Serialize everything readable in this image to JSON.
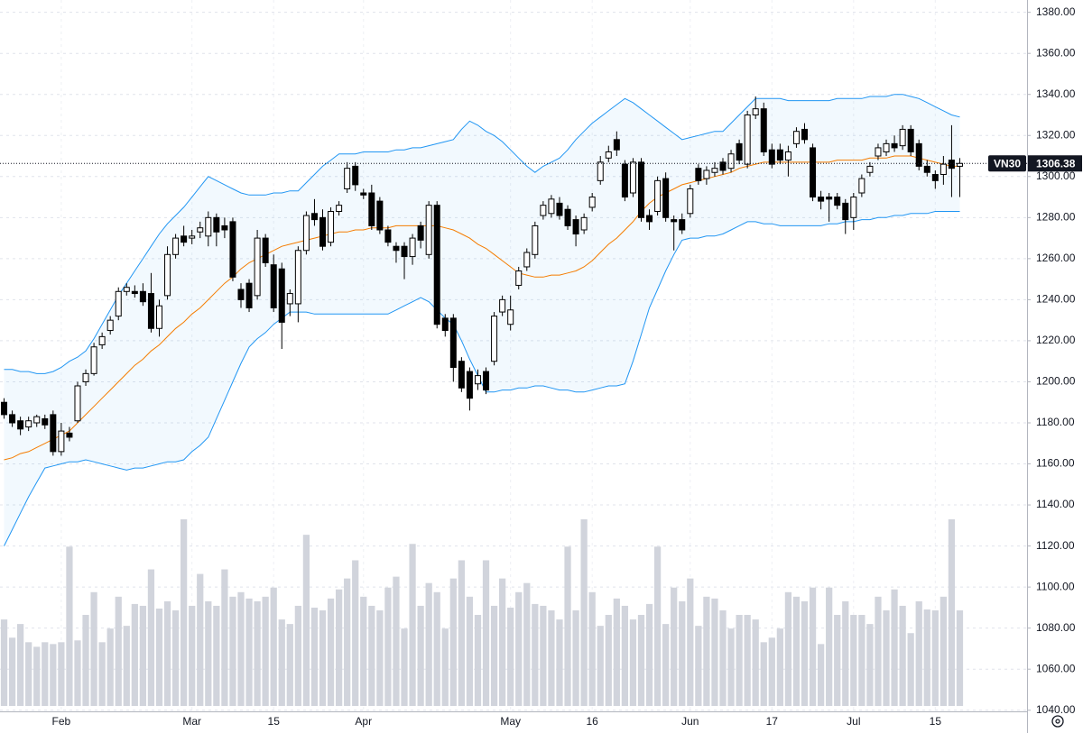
{
  "chart_data": {
    "type": "candlestick",
    "symbol": "VN30",
    "categories": [
      null,
      null,
      null,
      null,
      null,
      null,
      null,
      "Feb",
      null,
      null,
      null,
      null,
      null,
      null,
      null,
      null,
      null,
      null,
      null,
      null,
      null,
      null,
      null,
      "Mar",
      null,
      null,
      null,
      null,
      null,
      null,
      null,
      null,
      null,
      "15",
      null,
      null,
      null,
      null,
      null,
      null,
      null,
      null,
      null,
      null,
      "Apr",
      null,
      null,
      null,
      null,
      null,
      null,
      null,
      null,
      null,
      null,
      null,
      null,
      null,
      null,
      null,
      null,
      null,
      "May",
      null,
      null,
      null,
      null,
      null,
      null,
      null,
      null,
      null,
      "16",
      null,
      null,
      null,
      null,
      null,
      null,
      null,
      null,
      null,
      null,
      null,
      "Jun",
      null,
      null,
      null,
      null,
      null,
      null,
      null,
      null,
      null,
      "17",
      null,
      null,
      null,
      null,
      null,
      null,
      null,
      null,
      null,
      "Jul",
      null,
      null,
      null,
      null,
      null,
      null,
      null,
      null,
      null,
      "15",
      null,
      null,
      null
    ],
    "open": [
      1190,
      1184,
      1181,
      1178,
      1180,
      1182,
      1184,
      1166,
      1175,
      1181,
      1200,
      1204,
      1218,
      1225,
      1232,
      1244,
      1244,
      1244,
      1243,
      1226,
      1242,
      1262,
      1271,
      1270,
      1273,
      1271,
      1280,
      1276,
      1278,
      1245,
      1248,
      1242,
      1270,
      1257,
      1255,
      1238,
      1238,
      1264,
      1282,
      1280,
      1268,
      1283,
      1294,
      1305,
      1292,
      1292,
      1288,
      1274,
      1266,
      1266,
      1261,
      1276,
      1262,
      1286,
      1231,
      1231,
      1210,
      1205,
      1199,
      1205,
      1210,
      1234,
      1228,
      1247,
      1256,
      1262,
      1281,
      1282,
      1287,
      1284,
      1279,
      1274,
      1285,
      1298,
      1309,
      1318,
      1306,
      1292,
      1307,
      1281,
      1283,
      1299,
      1279,
      1279,
      1282,
      1304,
      1299,
      1302,
      1307,
      1304,
      1316,
      1306,
      1330,
      1333,
      1313,
      1313,
      1308,
      1316,
      1323,
      1314,
      1290,
      1290,
      1290,
      1287,
      1280,
      1292,
      1302,
      1310,
      1312,
      1316,
      1315,
      1323,
      1316,
      1305,
      1301,
      1301,
      1308,
      1305
    ],
    "high": [
      1192,
      1186,
      1183,
      1183,
      1184,
      1184,
      1186,
      1180,
      1178,
      1200,
      1206,
      1219,
      1224,
      1232,
      1246,
      1248,
      1247,
      1248,
      1253,
      1240,
      1266,
      1272,
      1276,
      1274,
      1278,
      1283,
      1282,
      1280,
      1280,
      1248,
      1250,
      1274,
      1272,
      1262,
      1258,
      1245,
      1266,
      1283,
      1289,
      1284,
      1285,
      1288,
      1307,
      1307,
      1294,
      1296,
      1290,
      1276,
      1268,
      1268,
      1272,
      1278,
      1288,
      1288,
      1233,
      1233,
      1212,
      1207,
      1206,
      1207,
      1234,
      1242,
      1242,
      1256,
      1265,
      1278,
      1288,
      1291,
      1290,
      1286,
      1281,
      1282,
      1292,
      1310,
      1315,
      1322,
      1308,
      1309,
      1309,
      1284,
      1300,
      1302,
      1281,
      1282,
      1296,
      1306,
      1305,
      1307,
      1309,
      1313,
      1318,
      1332,
      1339,
      1336,
      1316,
      1316,
      1315,
      1324,
      1326,
      1316,
      1293,
      1292,
      1292,
      1289,
      1292,
      1301,
      1307,
      1316,
      1318,
      1320,
      1325,
      1325,
      1318,
      1308,
      1303,
      1310,
      1325,
      1309
    ],
    "low": [
      1182,
      1178,
      1174,
      1176,
      1178,
      1177,
      1164,
      1164,
      1171,
      1180,
      1198,
      1203,
      1216,
      1223,
      1230,
      1242,
      1241,
      1237,
      1224,
      1222,
      1240,
      1260,
      1266,
      1267,
      1270,
      1266,
      1266,
      1270,
      1249,
      1236,
      1234,
      1240,
      1256,
      1234,
      1216,
      1232,
      1229,
      1262,
      1276,
      1264,
      1266,
      1281,
      1292,
      1293,
      1289,
      1274,
      1272,
      1266,
      1258,
      1250,
      1257,
      1265,
      1260,
      1226,
      1222,
      1200,
      1195,
      1186,
      1196,
      1194,
      1208,
      1232,
      1225,
      1245,
      1254,
      1260,
      1279,
      1280,
      1279,
      1274,
      1266,
      1272,
      1283,
      1296,
      1307,
      1310,
      1288,
      1290,
      1278,
      1274,
      1281,
      1278,
      1264,
      1272,
      1280,
      1296,
      1296,
      1300,
      1301,
      1302,
      1306,
      1304,
      1328,
      1310,
      1304,
      1306,
      1300,
      1314,
      1316,
      1288,
      1284,
      1278,
      1284,
      1272,
      1274,
      1290,
      1300,
      1308,
      1310,
      1312,
      1313,
      1310,
      1303,
      1300,
      1294,
      1296,
      1290,
      1290
    ],
    "close": [
      1184,
      1180,
      1177,
      1181,
      1183,
      1179,
      1166,
      1176,
      1173,
      1198,
      1204,
      1217,
      1222,
      1230,
      1244,
      1246,
      1243,
      1239,
      1226,
      1237,
      1262,
      1270,
      1268,
      1271,
      1275,
      1280,
      1273,
      1274,
      1251,
      1240,
      1236,
      1270,
      1258,
      1236,
      1229,
      1243,
      1264,
      1281,
      1279,
      1266,
      1283,
      1286,
      1304,
      1296,
      1291,
      1276,
      1274,
      1268,
      1264,
      1261,
      1270,
      1269,
      1286,
      1228,
      1225,
      1207,
      1197,
      1192,
      1203,
      1196,
      1232,
      1240,
      1235,
      1254,
      1263,
      1276,
      1286,
      1289,
      1281,
      1276,
      1272,
      1280,
      1290,
      1307,
      1312,
      1313,
      1290,
      1307,
      1280,
      1278,
      1298,
      1280,
      1278,
      1274,
      1294,
      1298,
      1303,
      1304,
      1303,
      1311,
      1308,
      1330,
      1333,
      1312,
      1306,
      1308,
      1312,
      1322,
      1318,
      1290,
      1288,
      1289,
      1286,
      1279,
      1290,
      1299,
      1305,
      1314,
      1316,
      1314,
      1323,
      1312,
      1305,
      1302,
      1298,
      1306,
      1304,
      1306.38
    ],
    "volume": [
      95,
      75,
      90,
      70,
      65,
      70,
      68,
      70,
      175,
      72,
      100,
      125,
      70,
      85,
      120,
      88,
      112,
      110,
      150,
      107,
      115,
      105,
      205,
      110,
      145,
      115,
      110,
      150,
      120,
      125,
      118,
      115,
      120,
      130,
      95,
      90,
      110,
      188,
      108,
      105,
      118,
      128,
      140,
      160,
      120,
      110,
      105,
      130,
      142,
      85,
      178,
      110,
      135,
      125,
      85,
      140,
      160,
      120,
      100,
      160,
      110,
      140,
      108,
      125,
      135,
      112,
      110,
      105,
      95,
      175,
      105,
      205,
      125,
      88,
      100,
      118,
      110,
      95,
      100,
      112,
      175,
      90,
      130,
      115,
      140,
      88,
      120,
      118,
      105,
      85,
      100,
      100,
      95,
      70,
      75,
      85,
      125,
      120,
      115,
      130,
      68,
      130,
      100,
      115,
      100,
      100,
      90,
      120,
      105,
      128,
      110,
      80,
      115,
      106,
      105,
      120,
      205,
      105
    ],
    "bollinger": {
      "upper": [
        1206,
        1206,
        1205,
        1205,
        1204,
        1204,
        1205,
        1207,
        1210,
        1212,
        1215,
        1221,
        1228,
        1235,
        1242,
        1248,
        1254,
        1260,
        1266,
        1272,
        1277,
        1281,
        1285,
        1290,
        1295,
        1300,
        1298,
        1296,
        1294,
        1292,
        1291,
        1291,
        1291,
        1292,
        1292,
        1293,
        1293,
        1297,
        1301,
        1305,
        1308,
        1311,
        1311,
        1311,
        1312,
        1312,
        1312,
        1312,
        1313,
        1313,
        1314,
        1314,
        1315,
        1316,
        1317,
        1318,
        1323,
        1327,
        1325,
        1322,
        1320,
        1317,
        1313,
        1309,
        1305,
        1302,
        1305,
        1307,
        1309,
        1313,
        1318,
        1322,
        1326,
        1329,
        1332,
        1335,
        1338,
        1336,
        1333,
        1330,
        1327,
        1324,
        1321,
        1318,
        1319,
        1320,
        1321,
        1322,
        1322,
        1326,
        1330,
        1334,
        1338,
        1338,
        1338,
        1338,
        1337,
        1337,
        1337,
        1337,
        1337,
        1337,
        1338,
        1338,
        1338,
        1338,
        1339,
        1339,
        1339,
        1340,
        1340,
        1339,
        1338,
        1336,
        1334,
        1332,
        1330,
        1329
      ],
      "basis": [
        1162,
        1163,
        1165,
        1166,
        1168,
        1170,
        1172,
        1174,
        1176,
        1180,
        1184,
        1188,
        1192,
        1196,
        1200,
        1204,
        1208,
        1211,
        1215,
        1218,
        1222,
        1226,
        1229,
        1233,
        1236,
        1240,
        1244,
        1248,
        1251,
        1255,
        1258,
        1260,
        1262,
        1264,
        1266,
        1267,
        1268,
        1269,
        1270,
        1271,
        1272,
        1273,
        1273,
        1274,
        1274,
        1275,
        1275,
        1275,
        1276,
        1276,
        1276,
        1276,
        1276,
        1276,
        1275,
        1274,
        1272,
        1270,
        1267,
        1265,
        1262,
        1259,
        1256,
        1253,
        1252,
        1251,
        1251,
        1252,
        1252,
        1253,
        1254,
        1256,
        1259,
        1263,
        1267,
        1270,
        1274,
        1278,
        1283,
        1287,
        1290,
        1292,
        1294,
        1296,
        1297,
        1298,
        1299,
        1300,
        1301,
        1302,
        1304,
        1305,
        1306,
        1307,
        1307,
        1307,
        1307,
        1307,
        1307,
        1307,
        1307,
        1307,
        1308,
        1308,
        1308,
        1308,
        1309,
        1309,
        1309,
        1310,
        1310,
        1310,
        1309,
        1308,
        1307,
        1306,
        1305,
        1305
      ],
      "lower": [
        1120,
        1128,
        1136,
        1144,
        1151,
        1158,
        1159,
        1160,
        1161,
        1161,
        1162,
        1161,
        1160,
        1159,
        1158,
        1157,
        1158,
        1158,
        1159,
        1160,
        1161,
        1161,
        1162,
        1166,
        1169,
        1173,
        1182,
        1191,
        1200,
        1209,
        1217,
        1221,
        1224,
        1228,
        1231,
        1234,
        1234,
        1234,
        1233,
        1233,
        1233,
        1233,
        1233,
        1233,
        1233,
        1233,
        1233,
        1233,
        1235,
        1237,
        1239,
        1241,
        1239,
        1235,
        1231,
        1228,
        1220,
        1211,
        1203,
        1195,
        1195,
        1196,
        1196,
        1197,
        1197,
        1198,
        1198,
        1197,
        1196,
        1196,
        1195,
        1195,
        1196,
        1197,
        1198,
        1198,
        1199,
        1210,
        1223,
        1236,
        1245,
        1254,
        1262,
        1269,
        1270,
        1270,
        1271,
        1271,
        1272,
        1274,
        1276,
        1278,
        1278,
        1277,
        1277,
        1276,
        1276,
        1276,
        1276,
        1276,
        1276,
        1277,
        1277,
        1278,
        1278,
        1279,
        1279,
        1280,
        1280,
        1281,
        1281,
        1282,
        1282,
        1282,
        1283,
        1283,
        1283,
        1283
      ],
      "band_color": "#2196f3",
      "basis_color": "#f57c00"
    },
    "up_color": "#ffffff",
    "down_color": "#000000",
    "volume_color": "#d1d4dc",
    "ylim": [
      1039,
      1386
    ],
    "yticks": [
      {
        "value": 1040,
        "label": "1040.00"
      },
      {
        "value": 1060,
        "label": "1060.00"
      },
      {
        "value": 1080,
        "label": "1080.00"
      },
      {
        "value": 1100,
        "label": "1100.00"
      },
      {
        "value": 1120,
        "label": "1120.00"
      },
      {
        "value": 1140,
        "label": "1140.00"
      },
      {
        "value": 1160,
        "label": "1160.00"
      },
      {
        "value": 1180,
        "label": "1180.00"
      },
      {
        "value": 1200,
        "label": "1200.00"
      },
      {
        "value": 1220,
        "label": "1220.00"
      },
      {
        "value": 1240,
        "label": "1240.00"
      },
      {
        "value": 1260,
        "label": "1260.00"
      },
      {
        "value": 1280,
        "label": "1280.00"
      },
      {
        "value": 1300,
        "label": "1300.00"
      },
      {
        "value": 1320,
        "label": "1320.00"
      },
      {
        "value": 1340,
        "label": "1340.00"
      },
      {
        "value": 1360,
        "label": "1360.00"
      },
      {
        "value": 1380,
        "label": "1380.00"
      }
    ],
    "grid": true
  }
}
